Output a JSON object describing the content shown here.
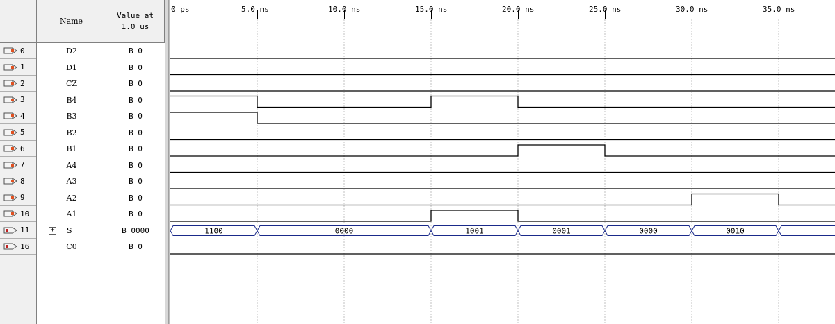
{
  "headers": {
    "name": "Name",
    "value": "Value at\n1.0 us"
  },
  "time_ticks": [
    "0 ps",
    "5.0 ns",
    "10.0 ns",
    "15.0 ns",
    "20.0 ns",
    "25.0 ns",
    "30.0 ns",
    "35.0 ns"
  ],
  "colors": {
    "wave": "#000000",
    "bus": "#1a2a8a",
    "grid": "#c0c0c0",
    "input_pin": "#e05020",
    "output_pin": "#c02020"
  },
  "signals": [
    {
      "index": "0",
      "name": "D2",
      "value": "B 0",
      "icon": "input-pin-icon"
    },
    {
      "index": "1",
      "name": "D1",
      "value": "B 0",
      "icon": "input-pin-icon"
    },
    {
      "index": "2",
      "name": "CZ",
      "value": "B 0",
      "icon": "input-pin-icon"
    },
    {
      "index": "3",
      "name": "B4",
      "value": "B 0",
      "icon": "input-pin-icon"
    },
    {
      "index": "4",
      "name": "B3",
      "value": "B 0",
      "icon": "input-pin-icon"
    },
    {
      "index": "5",
      "name": "B2",
      "value": "B 0",
      "icon": "input-pin-icon"
    },
    {
      "index": "6",
      "name": "B1",
      "value": "B 0",
      "icon": "input-pin-icon"
    },
    {
      "index": "7",
      "name": "A4",
      "value": "B 0",
      "icon": "input-pin-icon"
    },
    {
      "index": "8",
      "name": "A3",
      "value": "B 0",
      "icon": "input-pin-icon"
    },
    {
      "index": "9",
      "name": "A2",
      "value": "B 0",
      "icon": "input-pin-icon"
    },
    {
      "index": "10",
      "name": "A1",
      "value": "B 0",
      "icon": "input-pin-icon"
    },
    {
      "index": "11",
      "name": "S",
      "value": "B 0000",
      "icon": "output-pin-icon",
      "expandable": true
    },
    {
      "index": "16",
      "name": "C0",
      "value": "B 0",
      "icon": "output-pin-icon"
    }
  ],
  "waveforms": {
    "D2": [
      [
        0,
        0
      ]
    ],
    "D1": [
      [
        0,
        0
      ]
    ],
    "CZ": [
      [
        0,
        0
      ]
    ],
    "B4": [
      [
        0,
        1
      ],
      [
        5,
        0
      ],
      [
        15,
        1
      ],
      [
        20,
        0
      ]
    ],
    "B3": [
      [
        0,
        1
      ],
      [
        5,
        0
      ]
    ],
    "B2": [
      [
        0,
        0
      ]
    ],
    "B1": [
      [
        0,
        0
      ],
      [
        20,
        1
      ],
      [
        25,
        0
      ]
    ],
    "A4": [
      [
        0,
        0
      ]
    ],
    "A3": [
      [
        0,
        0
      ]
    ],
    "A2": [
      [
        0,
        0
      ],
      [
        30,
        1
      ],
      [
        35,
        0
      ]
    ],
    "A1": [
      [
        0,
        0
      ],
      [
        15,
        1
      ],
      [
        20,
        0
      ]
    ],
    "C0": [
      [
        0,
        0
      ]
    ]
  },
  "bus_S": [
    {
      "start": 0,
      "end": 5,
      "value": "1100"
    },
    {
      "start": 5,
      "end": 15,
      "value": "0000"
    },
    {
      "start": 15,
      "end": 20,
      "value": "1001"
    },
    {
      "start": 20,
      "end": 25,
      "value": "0001"
    },
    {
      "start": 25,
      "end": 30,
      "value": "0000"
    },
    {
      "start": 30,
      "end": 35,
      "value": "0010"
    },
    {
      "start": 35,
      "end": 40,
      "value": ""
    }
  ]
}
